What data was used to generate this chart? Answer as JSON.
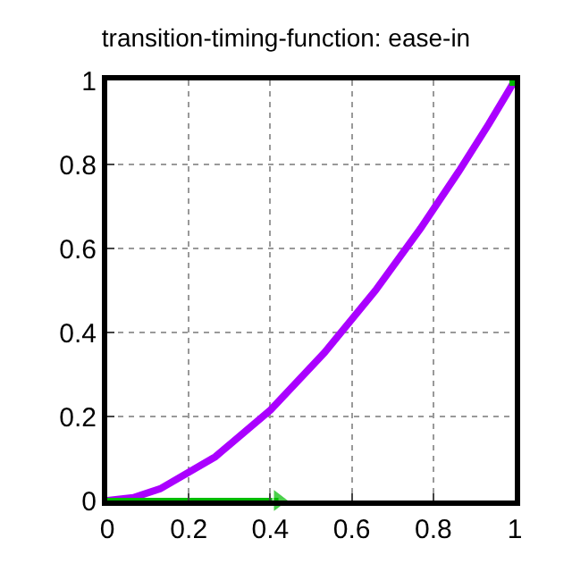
{
  "chart_data": {
    "type": "line",
    "title": "transition-timing-function: ease-in",
    "xlim": [
      0,
      1
    ],
    "ylim": [
      0,
      1
    ],
    "xticks": [
      0,
      0.2,
      0.4,
      0.6,
      0.8,
      1
    ],
    "yticks": [
      0,
      0.2,
      0.4,
      0.6,
      0.8,
      1
    ],
    "grid": true,
    "series": [
      {
        "color": "#aa00ff",
        "marker": "none",
        "x": [
          0,
          0.064,
          0.13,
          0.265,
          0.401,
          0.533,
          0.658,
          0.769,
          0.863,
          0.936,
          0.983,
          1
        ],
        "values": [
          0,
          0.007,
          0.028,
          0.104,
          0.216,
          0.352,
          0.5,
          0.648,
          0.784,
          0.896,
          0.972,
          1
        ]
      },
      {
        "color": "#00bb00",
        "marker": "triangle",
        "x": [
          0,
          0.42
        ],
        "values": [
          0,
          0
        ]
      },
      {
        "type": "scatter",
        "color": "#00bb00",
        "marker": "square",
        "x": [
          1
        ],
        "values": [
          1
        ]
      }
    ]
  }
}
